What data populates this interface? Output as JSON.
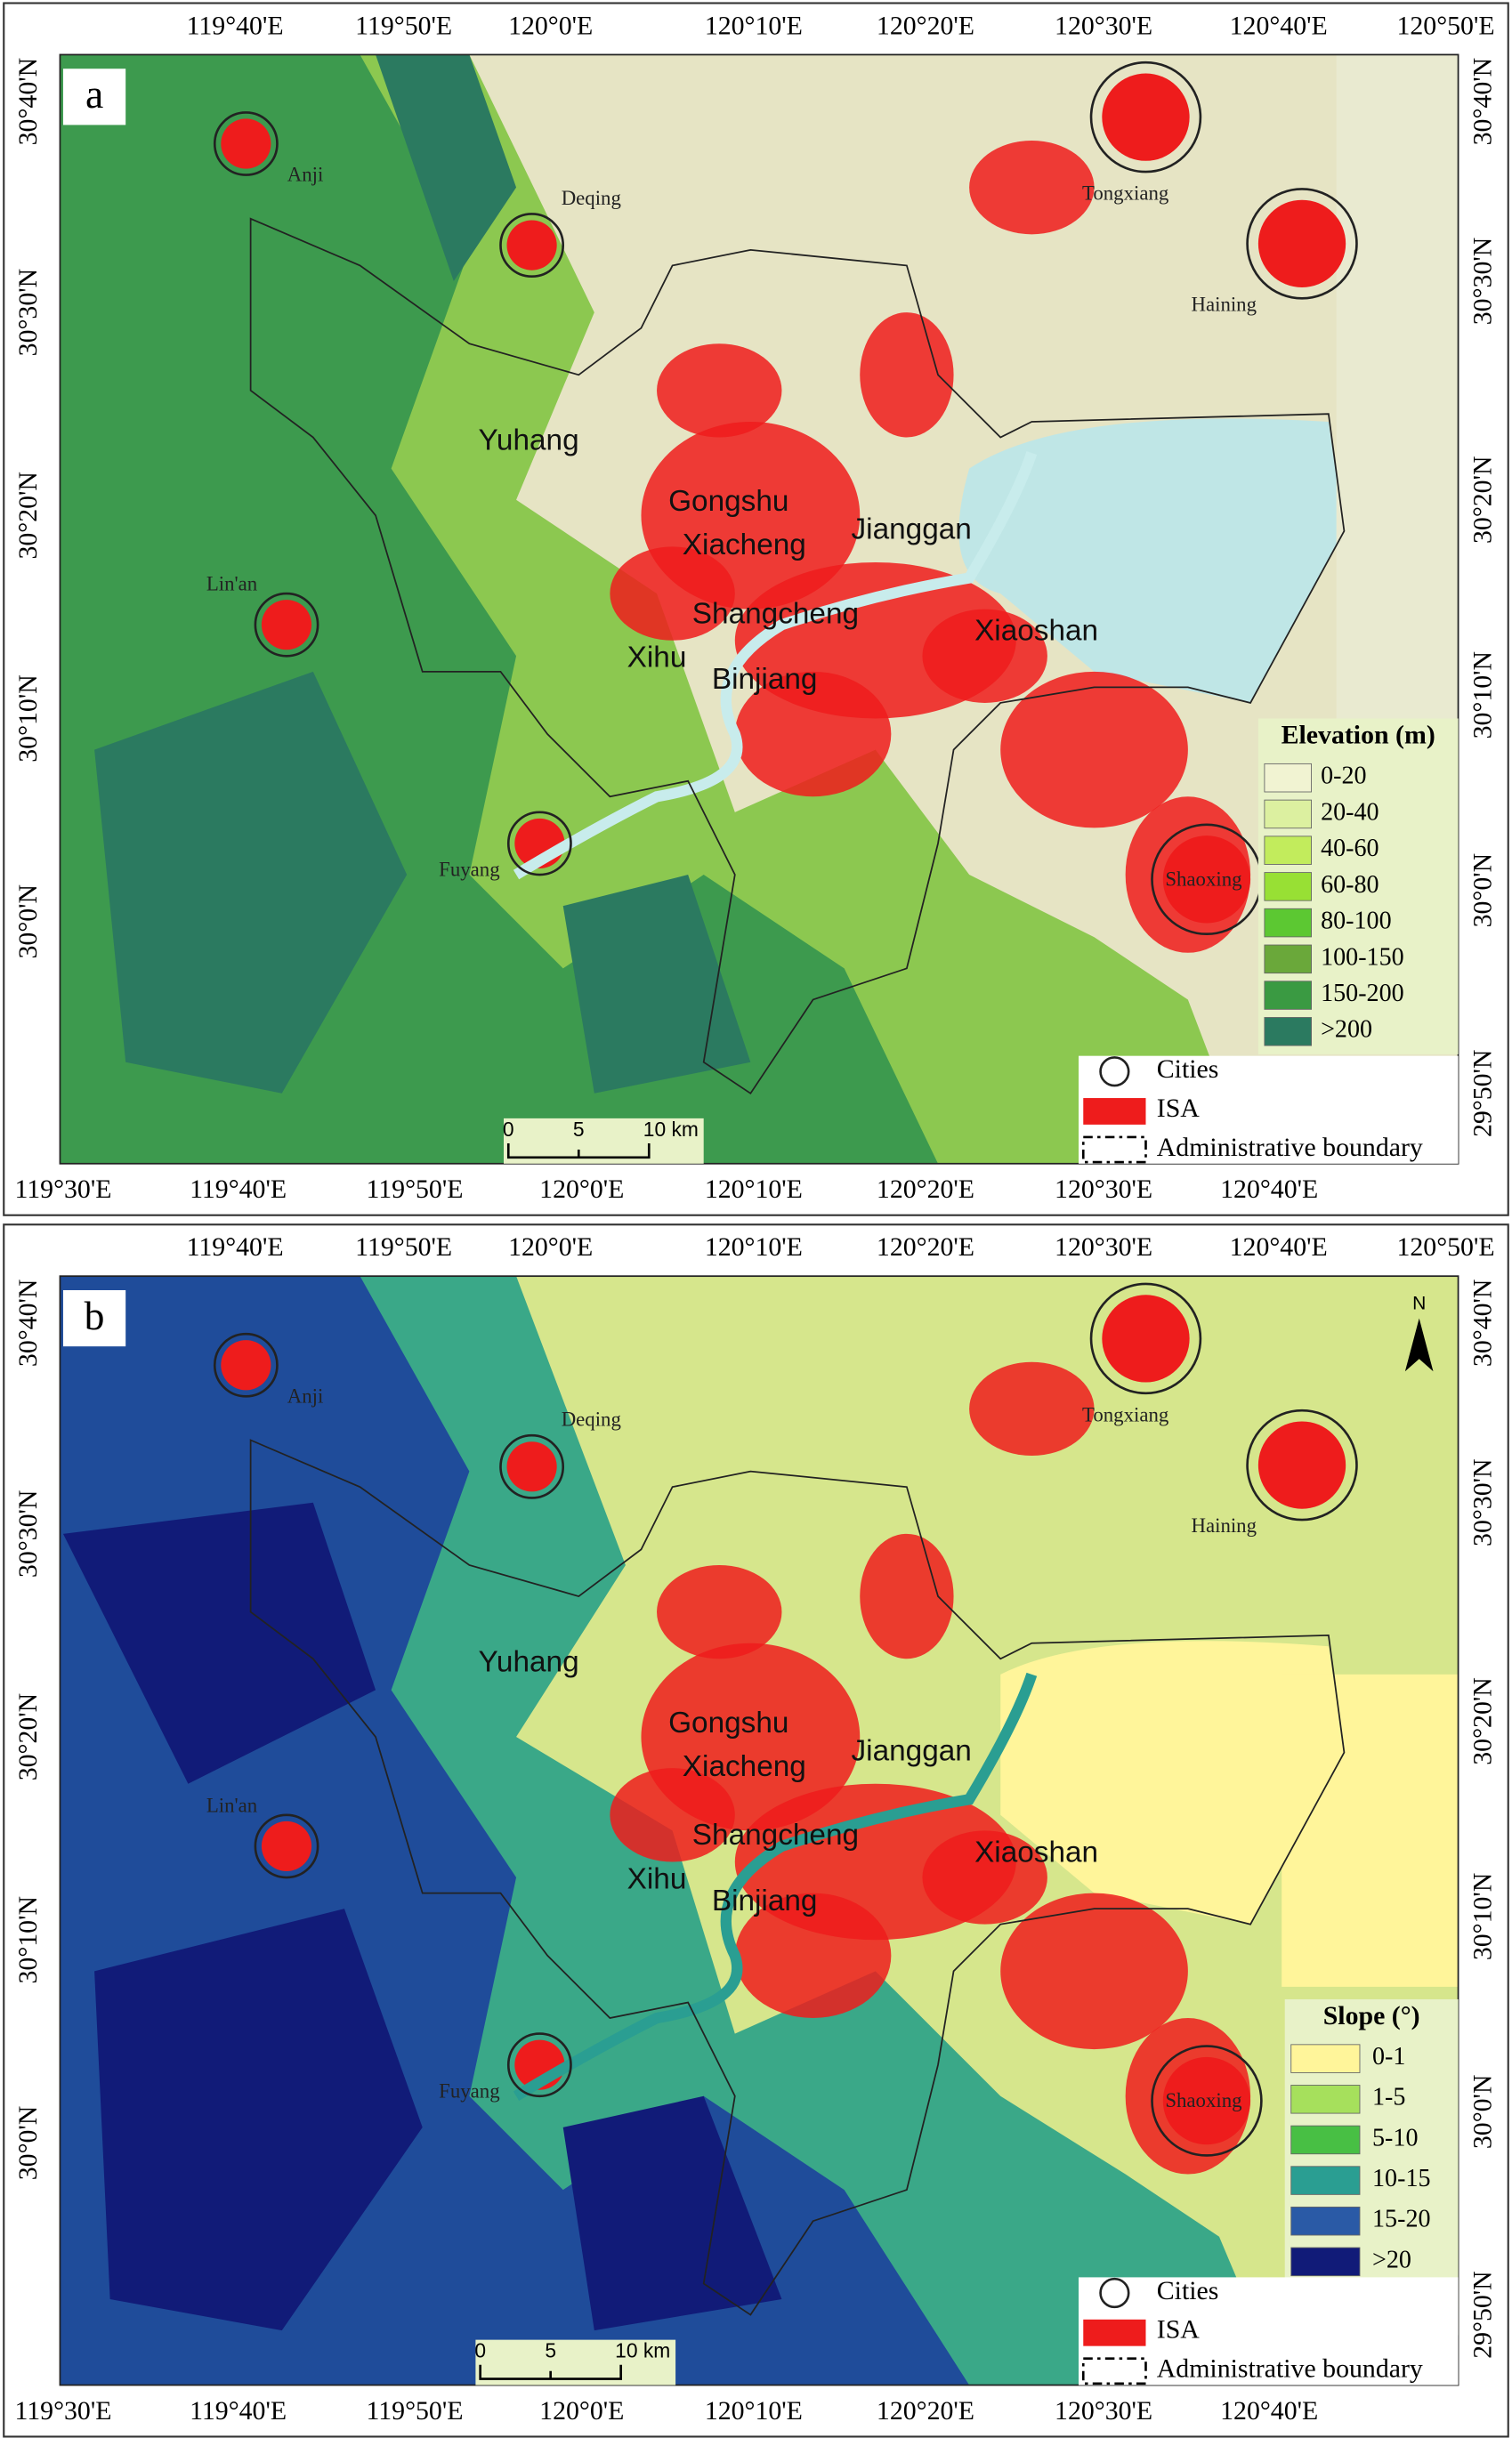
{
  "panels": [
    {
      "label": "a",
      "top_ticks": [
        "119°40'E",
        "119°50'E",
        "120°0'E",
        "120°10'E",
        "120°20'E",
        "120°30'E",
        "120°40'E",
        "120°50'E"
      ],
      "bottom_ticks": [
        "119°30'E",
        "119°40'E",
        "119°50'E",
        "120°0'E",
        "120°10'E",
        "120°20'E",
        "120°30'E",
        "120°40'E"
      ],
      "left_ticks": [
        "30°40'N",
        "30°30'N",
        "30°20'N",
        "30°10'N",
        "30°0'N"
      ],
      "right_ticks": [
        "30°40'N",
        "30°30'N",
        "30°20'N",
        "30°10'N",
        "30°0'N",
        "29°50'N"
      ],
      "cities": [
        "Anji",
        "Deqing",
        "Tongxiang",
        "Haining",
        "Lin'an",
        "Fuyang",
        "Shaoxing"
      ],
      "districts": [
        "Yuhang",
        "Gongshu",
        "Xiacheng",
        "Jianggan",
        "Shangcheng",
        "Xiaoshan",
        "Xihu",
        "Binjiang"
      ],
      "legend": {
        "title": "Elevation (m)",
        "items": [
          {
            "label": "0-20",
            "color": "#f1f3d2"
          },
          {
            "label": "20-40",
            "color": "#dcf0a0"
          },
          {
            "label": "40-60",
            "color": "#c2ec5c"
          },
          {
            "label": "60-80",
            "color": "#98e034"
          },
          {
            "label": "80-100",
            "color": "#5cc832"
          },
          {
            "label": "100-150",
            "color": "#6aa83a"
          },
          {
            "label": "150-200",
            "color": "#3a9a42"
          },
          {
            "label": ">200",
            "color": "#2b7a60"
          }
        ]
      },
      "key": {
        "cities": "Cities",
        "isa": "ISA",
        "boundary": "Administrative boundary"
      },
      "scale": {
        "zero": "0",
        "five": "5",
        "ten": "10 km"
      }
    },
    {
      "label": "b",
      "top_ticks": [
        "119°40'E",
        "119°50'E",
        "120°0'E",
        "120°10'E",
        "120°20'E",
        "120°30'E",
        "120°40'E",
        "120°50'E"
      ],
      "bottom_ticks": [
        "119°30'E",
        "119°40'E",
        "119°50'E",
        "120°0'E",
        "120°10'E",
        "120°20'E",
        "120°30'E",
        "120°40'E"
      ],
      "left_ticks": [
        "30°40'N",
        "30°30'N",
        "30°20'N",
        "30°10'N",
        "30°0'N"
      ],
      "right_ticks": [
        "30°40'N",
        "30°30'N",
        "30°20'N",
        "30°10'N",
        "30°0'N",
        "29°50'N"
      ],
      "cities": [
        "Anji",
        "Deqing",
        "Tongxiang",
        "Haining",
        "Lin'an",
        "Fuyang",
        "Shaoxing"
      ],
      "districts": [
        "Yuhang",
        "Gongshu",
        "Xiacheng",
        "Jianggan",
        "Shangcheng",
        "Xiaoshan",
        "Xihu",
        "Binjiang"
      ],
      "legend": {
        "title": "Slope (°)",
        "items": [
          {
            "label": "0-1",
            "color": "#fff59a"
          },
          {
            "label": "1-5",
            "color": "#a6e05c"
          },
          {
            "label": "5-10",
            "color": "#48bf44"
          },
          {
            "label": "10-15",
            "color": "#2a9e92"
          },
          {
            "label": "15-20",
            "color": "#2a5aa6"
          },
          {
            "label": ">20",
            "color": "#111b78"
          }
        ]
      },
      "key": {
        "cities": "Cities",
        "isa": "ISA",
        "boundary": "Administrative boundary"
      },
      "scale": {
        "zero": "0",
        "five": "5",
        "ten": "10 km"
      },
      "north": "N"
    }
  ]
}
